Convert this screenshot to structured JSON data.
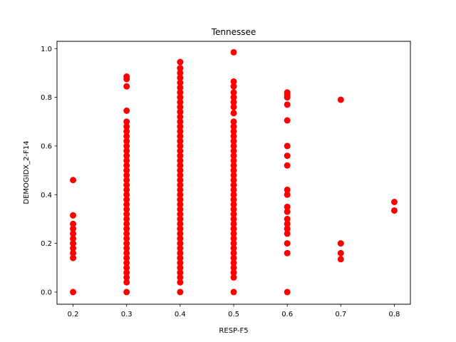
{
  "chart_data": {
    "type": "scatter",
    "title": "Tennessee",
    "xlabel": "RESP-F5",
    "ylabel": "DEMOGIDX_2-F14",
    "xlim": [
      0.17,
      0.83
    ],
    "ylim": [
      -0.05,
      1.03
    ],
    "xticks": [
      0.2,
      0.3,
      0.4,
      0.5,
      0.6,
      0.7,
      0.8
    ],
    "xtick_labels": [
      "0.2",
      "0.3",
      "0.4",
      "0.5",
      "0.6",
      "0.7",
      "0.8"
    ],
    "yticks": [
      0.0,
      0.2,
      0.4,
      0.6,
      0.8,
      1.0
    ],
    "ytick_labels": [
      "0.0",
      "0.2",
      "0.4",
      "0.6",
      "0.8",
      "1.0"
    ],
    "grid": false,
    "marker_color": "#ff0000",
    "series": [
      {
        "points": [
          [
            0.2,
            0.0
          ],
          [
            0.2,
            0.14
          ],
          [
            0.2,
            0.16
          ],
          [
            0.2,
            0.18
          ],
          [
            0.2,
            0.2
          ],
          [
            0.2,
            0.22
          ],
          [
            0.2,
            0.24
          ],
          [
            0.2,
            0.26
          ],
          [
            0.2,
            0.28
          ],
          [
            0.2,
            0.315
          ],
          [
            0.2,
            0.46
          ],
          [
            0.3,
            0.0
          ],
          [
            0.3,
            0.04
          ],
          [
            0.3,
            0.06
          ],
          [
            0.3,
            0.08
          ],
          [
            0.3,
            0.1
          ],
          [
            0.3,
            0.12
          ],
          [
            0.3,
            0.14
          ],
          [
            0.3,
            0.16
          ],
          [
            0.3,
            0.18
          ],
          [
            0.3,
            0.2
          ],
          [
            0.3,
            0.22
          ],
          [
            0.3,
            0.24
          ],
          [
            0.3,
            0.26
          ],
          [
            0.3,
            0.28
          ],
          [
            0.3,
            0.3
          ],
          [
            0.3,
            0.32
          ],
          [
            0.3,
            0.34
          ],
          [
            0.3,
            0.36
          ],
          [
            0.3,
            0.38
          ],
          [
            0.3,
            0.4
          ],
          [
            0.3,
            0.42
          ],
          [
            0.3,
            0.44
          ],
          [
            0.3,
            0.46
          ],
          [
            0.3,
            0.48
          ],
          [
            0.3,
            0.5
          ],
          [
            0.3,
            0.52
          ],
          [
            0.3,
            0.54
          ],
          [
            0.3,
            0.56
          ],
          [
            0.3,
            0.58
          ],
          [
            0.3,
            0.6
          ],
          [
            0.3,
            0.62
          ],
          [
            0.3,
            0.64
          ],
          [
            0.3,
            0.66
          ],
          [
            0.3,
            0.68
          ],
          [
            0.3,
            0.7
          ],
          [
            0.3,
            0.745
          ],
          [
            0.3,
            0.845
          ],
          [
            0.3,
            0.875
          ],
          [
            0.3,
            0.885
          ],
          [
            0.4,
            0.0
          ],
          [
            0.4,
            0.04
          ],
          [
            0.4,
            0.06
          ],
          [
            0.4,
            0.08
          ],
          [
            0.4,
            0.1
          ],
          [
            0.4,
            0.12
          ],
          [
            0.4,
            0.14
          ],
          [
            0.4,
            0.16
          ],
          [
            0.4,
            0.18
          ],
          [
            0.4,
            0.2
          ],
          [
            0.4,
            0.22
          ],
          [
            0.4,
            0.24
          ],
          [
            0.4,
            0.26
          ],
          [
            0.4,
            0.28
          ],
          [
            0.4,
            0.3
          ],
          [
            0.4,
            0.32
          ],
          [
            0.4,
            0.34
          ],
          [
            0.4,
            0.36
          ],
          [
            0.4,
            0.38
          ],
          [
            0.4,
            0.4
          ],
          [
            0.4,
            0.42
          ],
          [
            0.4,
            0.44
          ],
          [
            0.4,
            0.46
          ],
          [
            0.4,
            0.48
          ],
          [
            0.4,
            0.5
          ],
          [
            0.4,
            0.52
          ],
          [
            0.4,
            0.54
          ],
          [
            0.4,
            0.56
          ],
          [
            0.4,
            0.58
          ],
          [
            0.4,
            0.6
          ],
          [
            0.4,
            0.62
          ],
          [
            0.4,
            0.64
          ],
          [
            0.4,
            0.66
          ],
          [
            0.4,
            0.68
          ],
          [
            0.4,
            0.7
          ],
          [
            0.4,
            0.72
          ],
          [
            0.4,
            0.74
          ],
          [
            0.4,
            0.76
          ],
          [
            0.4,
            0.78
          ],
          [
            0.4,
            0.8
          ],
          [
            0.4,
            0.82
          ],
          [
            0.4,
            0.84
          ],
          [
            0.4,
            0.86
          ],
          [
            0.4,
            0.88
          ],
          [
            0.4,
            0.9
          ],
          [
            0.4,
            0.92
          ],
          [
            0.4,
            0.945
          ],
          [
            0.5,
            0.0
          ],
          [
            0.5,
            0.06
          ],
          [
            0.5,
            0.08
          ],
          [
            0.5,
            0.1
          ],
          [
            0.5,
            0.12
          ],
          [
            0.5,
            0.14
          ],
          [
            0.5,
            0.16
          ],
          [
            0.5,
            0.18
          ],
          [
            0.5,
            0.2
          ],
          [
            0.5,
            0.22
          ],
          [
            0.5,
            0.24
          ],
          [
            0.5,
            0.26
          ],
          [
            0.5,
            0.28
          ],
          [
            0.5,
            0.3
          ],
          [
            0.5,
            0.32
          ],
          [
            0.5,
            0.34
          ],
          [
            0.5,
            0.36
          ],
          [
            0.5,
            0.38
          ],
          [
            0.5,
            0.4
          ],
          [
            0.5,
            0.42
          ],
          [
            0.5,
            0.44
          ],
          [
            0.5,
            0.46
          ],
          [
            0.5,
            0.48
          ],
          [
            0.5,
            0.5
          ],
          [
            0.5,
            0.52
          ],
          [
            0.5,
            0.54
          ],
          [
            0.5,
            0.56
          ],
          [
            0.5,
            0.58
          ],
          [
            0.5,
            0.6
          ],
          [
            0.5,
            0.62
          ],
          [
            0.5,
            0.64
          ],
          [
            0.5,
            0.66
          ],
          [
            0.5,
            0.68
          ],
          [
            0.5,
            0.7
          ],
          [
            0.5,
            0.735
          ],
          [
            0.5,
            0.76
          ],
          [
            0.5,
            0.78
          ],
          [
            0.5,
            0.8
          ],
          [
            0.5,
            0.82
          ],
          [
            0.5,
            0.845
          ],
          [
            0.5,
            0.865
          ],
          [
            0.5,
            0.985
          ],
          [
            0.6,
            0.0
          ],
          [
            0.6,
            0.16
          ],
          [
            0.6,
            0.2
          ],
          [
            0.6,
            0.24
          ],
          [
            0.6,
            0.26
          ],
          [
            0.6,
            0.28
          ],
          [
            0.6,
            0.3
          ],
          [
            0.6,
            0.33
          ],
          [
            0.6,
            0.35
          ],
          [
            0.6,
            0.4
          ],
          [
            0.6,
            0.42
          ],
          [
            0.6,
            0.52
          ],
          [
            0.6,
            0.56
          ],
          [
            0.6,
            0.6
          ],
          [
            0.6,
            0.705
          ],
          [
            0.6,
            0.77
          ],
          [
            0.6,
            0.8
          ],
          [
            0.6,
            0.81
          ],
          [
            0.6,
            0.82
          ],
          [
            0.7,
            0.135
          ],
          [
            0.7,
            0.16
          ],
          [
            0.7,
            0.2
          ],
          [
            0.7,
            0.79
          ],
          [
            0.8,
            0.335
          ],
          [
            0.8,
            0.37
          ]
        ]
      }
    ]
  }
}
